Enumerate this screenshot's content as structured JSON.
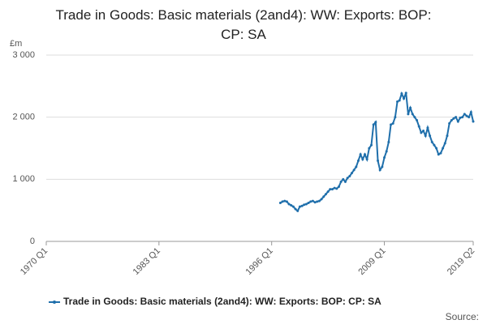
{
  "chart_data": {
    "type": "line",
    "title": "Trade in Goods: Basic materials (2and4): WW: Exports: BOP: CP: SA",
    "y_unit": "£m",
    "source": "Source:",
    "x": [
      1997,
      1997.25,
      1997.5,
      1997.75,
      1998,
      1998.25,
      1998.5,
      1998.75,
      1999,
      1999.25,
      1999.5,
      1999.75,
      2000,
      2000.25,
      2000.5,
      2000.75,
      2001,
      2001.25,
      2001.5,
      2001.75,
      2002,
      2002.25,
      2002.5,
      2002.75,
      2003,
      2003.25,
      2003.5,
      2003.75,
      2004,
      2004.25,
      2004.5,
      2004.75,
      2005,
      2005.25,
      2005.5,
      2005.75,
      2006,
      2006.25,
      2006.5,
      2006.75,
      2007,
      2007.25,
      2007.5,
      2007.75,
      2008,
      2008.25,
      2008.5,
      2008.75,
      2009,
      2009.25,
      2009.5,
      2009.75,
      2010,
      2010.25,
      2010.5,
      2010.75,
      2011,
      2011.25,
      2011.5,
      2011.75,
      2012,
      2012.25,
      2012.5,
      2012.75,
      2013,
      2013.25,
      2013.5,
      2013.75,
      2014,
      2014.25,
      2014.5,
      2014.75,
      2015,
      2015.25,
      2015.5,
      2015.75,
      2016,
      2016.25,
      2016.5,
      2016.75,
      2017,
      2017.25,
      2017.5,
      2017.75,
      2018,
      2018.25,
      2018.5,
      2018.75,
      2019,
      2019.25
    ],
    "series": [
      {
        "name": "Trade in Goods: Basic materials (2and4): WW: Exports: BOP: CP: SA",
        "color": "#1f6fab",
        "values": [
          620,
          640,
          650,
          640,
          600,
          580,
          560,
          520,
          490,
          560,
          570,
          590,
          600,
          620,
          640,
          650,
          630,
          640,
          650,
          680,
          720,
          760,
          800,
          840,
          840,
          860,
          850,
          880,
          960,
          1000,
          960,
          1020,
          1050,
          1100,
          1150,
          1200,
          1300,
          1400,
          1320,
          1400,
          1320,
          1500,
          1550,
          1880,
          1920,
          1300,
          1150,
          1200,
          1350,
          1450,
          1600,
          1880,
          1900,
          2000,
          2250,
          2270,
          2380,
          2300,
          2390,
          2050,
          2150,
          2050,
          2000,
          1950,
          1850,
          1750,
          1780,
          1700,
          1830,
          1700,
          1600,
          1550,
          1500,
          1400,
          1420,
          1500,
          1580,
          1700,
          1900,
          1950,
          1980,
          2000,
          1930,
          1990,
          2000,
          2050,
          2020,
          2000,
          2080,
          1930
        ]
      }
    ],
    "xlim": [
      1970,
      2019.25
    ],
    "xticks": [
      {
        "value": 1970,
        "label": "1970 Q1"
      },
      {
        "value": 1983,
        "label": "1983 Q1"
      },
      {
        "value": 1996,
        "label": "1996 Q1"
      },
      {
        "value": 2009,
        "label": "2009 Q1"
      },
      {
        "value": 2019.25,
        "label": "2019 Q2"
      }
    ],
    "ylim": [
      0,
      3000
    ],
    "yticks": [
      {
        "value": 0,
        "label": "0"
      },
      {
        "value": 1000,
        "label": "1 000"
      },
      {
        "value": 2000,
        "label": "2 000"
      },
      {
        "value": 3000,
        "label": "3 000"
      }
    ],
    "grid": true
  }
}
